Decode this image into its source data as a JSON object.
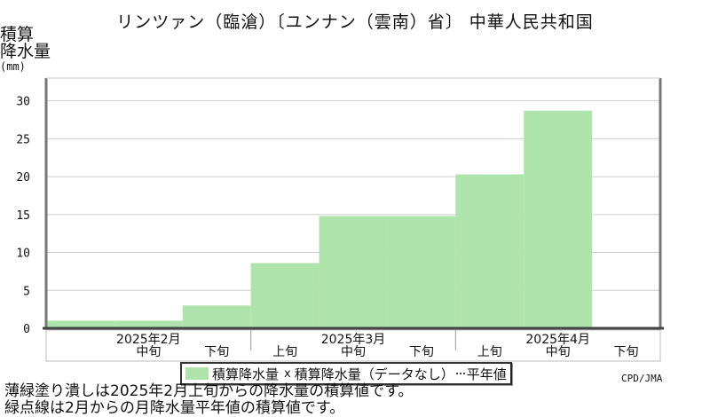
{
  "title": "リンツァン（臨滄）〔ユンナン（雲南）省〕 中華人民共和国",
  "y_unit_label_line1": "積算",
  "y_unit_label_line2": "降水量",
  "y_unit_label_line3": "(mm)",
  "legend": {
    "item1": "積算降水量",
    "marker2": "x",
    "item2": "積算降水量（データなし）",
    "item3": "平年値"
  },
  "credit": "CPD/JMA",
  "notes": [
    "薄緑塗り潰しは2025年2月上旬からの降水量の積算値です。",
    "緑点線は2月からの月降水量平年値の積算値です。"
  ],
  "colors": {
    "fill": "#aee3ab",
    "grid": "#cccccc",
    "axis": "#777777"
  },
  "chart_data": {
    "type": "area",
    "ylim": [
      0,
      33
    ],
    "yticks": [
      0,
      5,
      10,
      15,
      20,
      25,
      30
    ],
    "grid": true,
    "months": [
      {
        "label": "2025年2月",
        "first": 0,
        "last": 2
      },
      {
        "label": "2025年3月",
        "first": 3,
        "last": 5
      },
      {
        "label": "2025年4月",
        "first": 6,
        "last": 8
      }
    ],
    "periods": [
      "",
      "中旬",
      "下旬",
      "上旬",
      "中旬",
      "下旬",
      "上旬",
      "中旬",
      "下旬"
    ],
    "series": [
      {
        "values": [
          1.0,
          1.0,
          3.0,
          8.6,
          14.8,
          14.8,
          20.3,
          28.7,
          null
        ]
      }
    ]
  }
}
